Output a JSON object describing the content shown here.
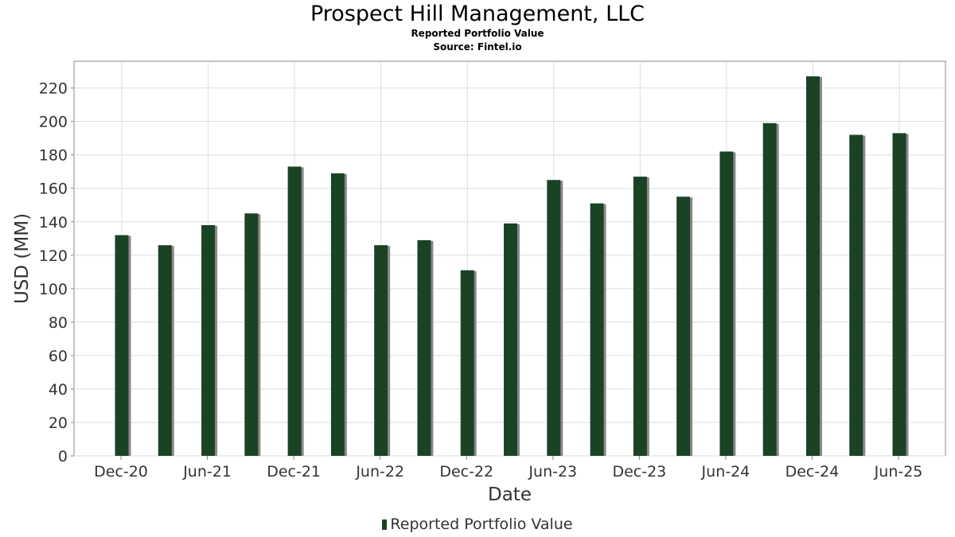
{
  "title": "Prospect Hill Management, LLC",
  "subtitle_1": "Reported Portfolio Value",
  "subtitle_2": "Source: Fintel.io",
  "colors": {
    "bar": "#1a4326",
    "bar_shadow": "#8a8a8a",
    "grid": "#dddddd",
    "axis": "#888888",
    "text": "#333333"
  },
  "chart_data": {
    "type": "bar",
    "xlabel": "Date",
    "ylabel": "USD (MM)",
    "ylim": [
      0,
      236
    ],
    "yticks": [
      0,
      20,
      40,
      60,
      80,
      100,
      120,
      140,
      160,
      180,
      200,
      220
    ],
    "x_tick_labels": [
      "Dec-20",
      "Jun-21",
      "Dec-21",
      "Jun-22",
      "Dec-22",
      "Jun-23",
      "Dec-23",
      "Jun-24",
      "Dec-24",
      "Jun-25"
    ],
    "grid": true,
    "legend_position": "bottom-center",
    "categories": [
      "2020-12",
      "2021-03",
      "2021-06",
      "2021-09",
      "2021-12",
      "2022-03",
      "2022-06",
      "2022-09",
      "2022-12",
      "2023-03",
      "2023-06",
      "2023-09",
      "2023-12",
      "2024-03",
      "2024-06",
      "2024-09",
      "2024-12",
      "2025-03",
      "2025-06"
    ],
    "series": [
      {
        "name": "Reported Portfolio Value",
        "values": [
          132,
          126,
          138,
          145,
          173,
          169,
          126,
          129,
          111,
          139,
          165,
          151,
          167,
          155,
          182,
          199,
          227,
          192,
          193
        ]
      }
    ]
  }
}
